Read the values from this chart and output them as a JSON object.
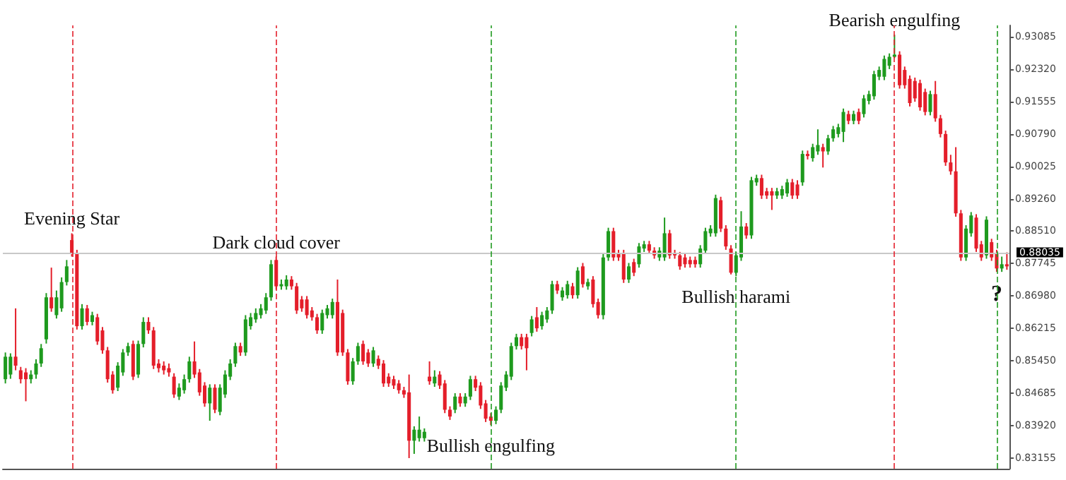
{
  "chart_data": {
    "type": "candlestick",
    "categories": [
      null,
      null,
      null,
      null,
      null,
      null,
      null,
      null,
      null,
      null,
      null,
      null,
      null,
      null,
      null,
      null,
      null,
      null,
      null,
      null,
      null,
      null,
      null,
      null,
      null,
      null,
      null,
      null,
      null,
      null,
      null,
      null,
      null,
      null,
      null,
      null,
      null,
      null,
      null,
      null,
      null,
      null,
      null,
      null,
      null,
      null,
      null,
      null,
      null,
      null,
      null,
      null,
      null,
      null,
      null,
      null,
      null,
      null,
      null,
      null,
      null,
      null,
      null,
      null,
      null,
      null,
      null,
      null,
      null,
      null,
      null,
      null,
      null,
      null,
      null,
      null,
      null,
      null,
      null,
      null,
      null,
      null,
      null,
      null,
      null,
      null,
      null,
      null,
      null,
      null,
      null,
      null,
      null,
      null,
      null,
      null,
      null,
      null,
      null,
      null,
      null,
      null,
      null,
      null,
      null,
      null,
      null,
      null,
      null,
      null,
      null,
      null,
      null,
      null,
      null,
      null,
      null,
      null,
      null,
      null,
      null,
      null,
      null,
      null,
      null,
      null,
      null,
      null,
      null,
      null,
      null,
      null,
      null,
      null,
      null,
      null,
      null,
      null,
      null,
      null,
      null,
      null,
      null,
      null,
      null,
      null,
      null,
      null,
      null,
      null,
      null,
      null,
      null,
      null,
      null,
      null,
      null,
      null,
      null,
      null,
      null,
      null,
      null,
      null,
      null,
      null,
      null,
      null,
      null,
      null,
      null,
      null,
      null,
      null,
      null,
      null,
      null,
      null,
      null,
      null,
      null,
      null,
      null,
      null,
      null,
      null,
      null,
      null,
      null,
      null,
      null,
      null,
      null,
      null,
      null,
      null,
      null
    ],
    "colors": [
      "#1e9a1e",
      "#1e9a1e",
      "#e41e2a",
      "#e41e2a",
      "#e41e2a",
      "#1e9a1e",
      "#1e9a1e",
      "#1e9a1e",
      "#1e9a1e",
      "#e41e2a",
      "#1e9a1e",
      "#1e9a1e",
      "#1e9a1e",
      "#e41e2a",
      "#e41e2a",
      "#1e9a1e",
      "#e41e2a",
      "#1e9a1e",
      "#e41e2a",
      "#e41e2a",
      "#e41e2a",
      "#e41e2a",
      "#1e9a1e",
      "#1e9a1e",
      "#1e9a1e",
      "#e41e2a",
      "#1e9a1e",
      "#1e9a1e",
      "#e41e2a",
      "#e41e2a",
      "#e41e2a",
      "#e41e2a",
      "#e41e2a",
      "#e41e2a",
      "#1e9a1e",
      "#1e9a1e",
      "#1e9a1e",
      "#e41e2a",
      "#e41e2a",
      "#e41e2a",
      "#1e9a1e",
      "#e41e2a",
      "#1e9a1e",
      "#1e9a1e",
      "#1e9a1e",
      "#1e9a1e",
      "#e41e2a",
      "#1e9a1e",
      "#1e9a1e",
      "#1e9a1e",
      "#1e9a1e",
      "#1e9a1e",
      "#1e9a1e",
      "#e41e2a",
      "#1e9a1e",
      "#1e9a1e",
      "#e41e2a",
      "#e41e2a",
      "#e41e2a",
      "#e41e2a",
      "#e41e2a",
      "#e41e2a",
      "#1e9a1e",
      "#1e9a1e",
      "#1e9a1e",
      "#e41e2a",
      "#e41e2a",
      "#e41e2a",
      "#1e9a1e",
      "#1e9a1e",
      "#e41e2a",
      "#e41e2a",
      "#1e9a1e",
      "#e41e2a",
      "#e41e2a",
      "#e41e2a",
      "#e41e2a",
      "#e41e2a",
      "#e41e2a",
      "#e41e2a",
      "#1e9a1e",
      "#1e9a1e",
      "#1e9a1e",
      "#e41e2a",
      "#1e9a1e",
      "#e41e2a",
      "#e41e2a",
      "#e41e2a",
      "#1e9a1e",
      "#e41e2a",
      "#1e9a1e",
      "#1e9a1e",
      "#e41e2a",
      "#e41e2a",
      "#e41e2a",
      "#e41e2a",
      "#1e9a1e",
      "#1e9a1e",
      "#1e9a1e",
      "#1e9a1e",
      "#1e9a1e",
      "#e41e2a",
      "#e41e2a",
      "#1e9a1e",
      "#e41e2a",
      "#1e9a1e",
      "#1e9a1e",
      "#1e9a1e",
      "#e41e2a",
      "#1e9a1e",
      "#1e9a1e",
      "#e41e2a",
      "#1e9a1e",
      "#e41e2a",
      "#1e9a1e",
      "#e41e2a",
      "#e41e2a",
      "#1e9a1e",
      "#1e9a1e",
      "#e41e2a",
      "#e41e2a",
      "#e41e2a",
      "#1e9a1e",
      "#e41e2a",
      "#1e9a1e",
      "#1e9a1e",
      "#e41e2a",
      "#e41e2a",
      "#1e9a1e",
      "#1e9a1e",
      "#e41e2a",
      "#e41e2a",
      "#e41e2a",
      "#e41e2a",
      "#e41e2a",
      "#e41e2a",
      "#1e9a1e",
      "#1e9a1e",
      "#1e9a1e",
      "#1e9a1e",
      "#e41e2a",
      "#e41e2a",
      "#e41e2a",
      "#1e9a1e",
      "#1e9a1e",
      "#e41e2a",
      "#1e9a1e",
      "#1e9a1e",
      "#e41e2a",
      "#e41e2a",
      "#e41e2a",
      "#1e9a1e",
      "#1e9a1e",
      "#1e9a1e",
      "#e41e2a",
      "#e41e2a",
      "#1e9a1e",
      "#e41e2a",
      "#1e9a1e",
      "#1e9a1e",
      "#e41e2a",
      "#1e9a1e",
      "#1e9a1e",
      "#1e9a1e",
      "#1e9a1e",
      "#e41e2a",
      "#1e9a1e",
      "#e41e2a",
      "#1e9a1e",
      "#1e9a1e",
      "#1e9a1e",
      "#1e9a1e",
      "#1e9a1e",
      "#1e9a1e",
      "#1e9a1e",
      "#e41e2a",
      "#e41e2a",
      "#e41e2a",
      "#e41e2a",
      "#e41e2a",
      "#e41e2a",
      "#1e9a1e",
      "#e41e2a",
      "#e41e2a",
      "#e41e2a",
      "#e41e2a",
      "#e41e2a",
      "#e41e2a",
      "#1e9a1e",
      "#1e9a1e",
      "#e41e2a",
      "#e41e2a",
      "#1e9a1e",
      "#e41e2a",
      "#e41e2a",
      "#1e9a1e",
      "#e41e2a"
    ],
    "ohlc": [
      [
        0.8501,
        0.8564,
        0.8491,
        0.8554
      ],
      [
        0.8512,
        0.8562,
        0.8502,
        0.8554
      ],
      [
        0.8554,
        0.8668,
        0.8522,
        0.8533
      ],
      [
        0.8522,
        0.853,
        0.8491,
        0.8501
      ],
      [
        0.8517,
        0.8527,
        0.8449,
        0.8501
      ],
      [
        0.8501,
        0.8522,
        0.8491,
        0.8512
      ],
      [
        0.8512,
        0.8548,
        0.8502,
        0.8538
      ],
      [
        0.8538,
        0.8584,
        0.853,
        0.8574
      ],
      [
        0.8595,
        0.8704,
        0.8585,
        0.8694
      ],
      [
        0.8694,
        0.8764,
        0.866,
        0.8668
      ],
      [
        0.8652,
        0.871,
        0.8644,
        0.8694
      ],
      [
        0.8668,
        0.8741,
        0.866,
        0.873
      ],
      [
        0.873,
        0.8782,
        0.8722,
        0.8767
      ],
      [
        0.8829,
        0.8845,
        0.879,
        0.8798
      ],
      [
        0.8798,
        0.8806,
        0.8618,
        0.8626
      ],
      [
        0.8626,
        0.8678,
        0.8618,
        0.8668
      ],
      [
        0.8668,
        0.8676,
        0.8628,
        0.8636
      ],
      [
        0.8636,
        0.866,
        0.8628,
        0.8652
      ],
      [
        0.8647,
        0.8655,
        0.8582,
        0.859
      ],
      [
        0.8616,
        0.8624,
        0.8561,
        0.8569
      ],
      [
        0.8569,
        0.8577,
        0.8493,
        0.8501
      ],
      [
        0.8512,
        0.852,
        0.8467,
        0.8475
      ],
      [
        0.8481,
        0.8541,
        0.8473,
        0.8533
      ],
      [
        0.8517,
        0.8572,
        0.8509,
        0.8564
      ],
      [
        0.8564,
        0.8587,
        0.8556,
        0.8579
      ],
      [
        0.8584,
        0.8592,
        0.8499,
        0.8507
      ],
      [
        0.8512,
        0.8592,
        0.8504,
        0.8584
      ],
      [
        0.8584,
        0.8647,
        0.8576,
        0.8636
      ],
      [
        0.8636,
        0.8647,
        0.8608,
        0.8616
      ],
      [
        0.8616,
        0.8624,
        0.8525,
        0.8533
      ],
      [
        0.8538,
        0.8548,
        0.8517,
        0.8527
      ],
      [
        0.8533,
        0.8543,
        0.8512,
        0.8522
      ],
      [
        0.8527,
        0.8538,
        0.8507,
        0.8517
      ],
      [
        0.8507,
        0.8515,
        0.8457,
        0.8465
      ],
      [
        0.846,
        0.8491,
        0.8452,
        0.8481
      ],
      [
        0.8475,
        0.8512,
        0.8467,
        0.8501
      ],
      [
        0.8501,
        0.8554,
        0.8493,
        0.8543
      ],
      [
        0.8543,
        0.859,
        0.8504,
        0.8512
      ],
      [
        0.8517,
        0.8525,
        0.8462,
        0.847
      ],
      [
        0.8486,
        0.8494,
        0.8436,
        0.8444
      ],
      [
        0.8444,
        0.8489,
        0.8403,
        0.8481
      ],
      [
        0.8481,
        0.8489,
        0.8421,
        0.8429
      ],
      [
        0.8424,
        0.8489,
        0.8416,
        0.8481
      ],
      [
        0.8465,
        0.8522,
        0.8457,
        0.8512
      ],
      [
        0.8507,
        0.8548,
        0.8499,
        0.8538
      ],
      [
        0.8538,
        0.8587,
        0.853,
        0.8579
      ],
      [
        0.8579,
        0.8587,
        0.8556,
        0.8564
      ],
      [
        0.8564,
        0.8652,
        0.8556,
        0.8642
      ],
      [
        0.8626,
        0.8657,
        0.8618,
        0.8647
      ],
      [
        0.8642,
        0.8668,
        0.8634,
        0.8657
      ],
      [
        0.8652,
        0.8678,
        0.8644,
        0.8668
      ],
      [
        0.8663,
        0.8704,
        0.8655,
        0.8694
      ],
      [
        0.8694,
        0.8782,
        0.8686,
        0.8772
      ],
      [
        0.8782,
        0.879,
        0.8712,
        0.872
      ],
      [
        0.872,
        0.8736,
        0.8712,
        0.8725
      ],
      [
        0.872,
        0.8746,
        0.8712,
        0.8736
      ],
      [
        0.8736,
        0.8744,
        0.8712,
        0.872
      ],
      [
        0.872,
        0.8728,
        0.8655,
        0.8663
      ],
      [
        0.8689,
        0.8697,
        0.866,
        0.8668
      ],
      [
        0.8689,
        0.8697,
        0.8644,
        0.8652
      ],
      [
        0.8663,
        0.8671,
        0.8639,
        0.8647
      ],
      [
        0.8647,
        0.8655,
        0.8608,
        0.8616
      ],
      [
        0.8616,
        0.8665,
        0.8608,
        0.8657
      ],
      [
        0.8652,
        0.8676,
        0.8644,
        0.8668
      ],
      [
        0.8652,
        0.8691,
        0.8644,
        0.8683
      ],
      [
        0.8683,
        0.8736,
        0.8556,
        0.8564
      ],
      [
        0.8657,
        0.8665,
        0.8556,
        0.8564
      ],
      [
        0.8564,
        0.8572,
        0.8488,
        0.8496
      ],
      [
        0.8496,
        0.8551,
        0.8488,
        0.8543
      ],
      [
        0.8543,
        0.8587,
        0.8535,
        0.8579
      ],
      [
        0.8584,
        0.8592,
        0.8535,
        0.8543
      ],
      [
        0.8564,
        0.8572,
        0.853,
        0.8538
      ],
      [
        0.8538,
        0.8577,
        0.853,
        0.8569
      ],
      [
        0.8549,
        0.8557,
        0.8525,
        0.8533
      ],
      [
        0.8538,
        0.8546,
        0.8483,
        0.8491
      ],
      [
        0.8507,
        0.8515,
        0.8483,
        0.8491
      ],
      [
        0.8501,
        0.8509,
        0.8478,
        0.8486
      ],
      [
        0.8491,
        0.8499,
        0.8467,
        0.8475
      ],
      [
        0.8475,
        0.8483,
        0.8457,
        0.8465
      ],
      [
        0.847,
        0.8512,
        0.8315,
        0.8356
      ],
      [
        0.8356,
        0.839,
        0.8325,
        0.8382
      ],
      [
        0.8362,
        0.8413,
        0.8354,
        0.8382
      ],
      [
        0.8362,
        0.8385,
        0.8354,
        0.8377
      ],
      [
        0.8507,
        0.8543,
        0.8488,
        0.8496
      ],
      [
        0.8491,
        0.8522,
        0.8483,
        0.8507
      ],
      [
        0.8512,
        0.852,
        0.8478,
        0.8486
      ],
      [
        0.8491,
        0.8499,
        0.8421,
        0.8429
      ],
      [
        0.8429,
        0.8437,
        0.8405,
        0.8413
      ],
      [
        0.8429,
        0.8468,
        0.8421,
        0.846
      ],
      [
        0.846,
        0.8468,
        0.8436,
        0.8444
      ],
      [
        0.8444,
        0.8468,
        0.8436,
        0.846
      ],
      [
        0.846,
        0.8509,
        0.8452,
        0.8501
      ],
      [
        0.8501,
        0.8509,
        0.8473,
        0.8481
      ],
      [
        0.8486,
        0.8494,
        0.8431,
        0.8439
      ],
      [
        0.8444,
        0.8452,
        0.84,
        0.8408
      ],
      [
        0.8413,
        0.8421,
        0.8393,
        0.8403
      ],
      [
        0.8403,
        0.8437,
        0.8395,
        0.8429
      ],
      [
        0.8429,
        0.8494,
        0.8421,
        0.8486
      ],
      [
        0.8481,
        0.852,
        0.8473,
        0.8512
      ],
      [
        0.8507,
        0.8587,
        0.8499,
        0.8579
      ],
      [
        0.8579,
        0.8608,
        0.8571,
        0.86
      ],
      [
        0.86,
        0.8608,
        0.8571,
        0.8579
      ],
      [
        0.86,
        0.8608,
        0.8522,
        0.8574
      ],
      [
        0.861,
        0.865,
        0.8602,
        0.8642
      ],
      [
        0.8647,
        0.8671,
        0.8613,
        0.8621
      ],
      [
        0.8626,
        0.866,
        0.8618,
        0.8652
      ],
      [
        0.8642,
        0.8671,
        0.8634,
        0.8663
      ],
      [
        0.8663,
        0.8733,
        0.8655,
        0.8725
      ],
      [
        0.8725,
        0.8733,
        0.8702,
        0.871
      ],
      [
        0.8694,
        0.8718,
        0.8686,
        0.871
      ],
      [
        0.8699,
        0.8733,
        0.8691,
        0.8725
      ],
      [
        0.872,
        0.8728,
        0.8691,
        0.8699
      ],
      [
        0.8699,
        0.8765,
        0.8691,
        0.8757
      ],
      [
        0.8767,
        0.8775,
        0.8717,
        0.8725
      ],
      [
        0.872,
        0.8738,
        0.8712,
        0.873
      ],
      [
        0.8736,
        0.8744,
        0.867,
        0.8678
      ],
      [
        0.8683,
        0.8691,
        0.8644,
        0.8652
      ],
      [
        0.8652,
        0.8798,
        0.8642,
        0.8788
      ],
      [
        0.8788,
        0.8858,
        0.878,
        0.885
      ],
      [
        0.885,
        0.8858,
        0.878,
        0.8788
      ],
      [
        0.8798,
        0.8806,
        0.878,
        0.8788
      ],
      [
        0.8798,
        0.8806,
        0.8728,
        0.8736
      ],
      [
        0.8736,
        0.8775,
        0.8728,
        0.8767
      ],
      [
        0.8777,
        0.8785,
        0.8744,
        0.8752
      ],
      [
        0.8772,
        0.8822,
        0.8764,
        0.8814
      ],
      [
        0.8809,
        0.8827,
        0.8801,
        0.8819
      ],
      [
        0.8819,
        0.8827,
        0.8796,
        0.8804
      ],
      [
        0.8804,
        0.8812,
        0.8785,
        0.8793
      ],
      [
        0.8788,
        0.8812,
        0.878,
        0.8804
      ],
      [
        0.8788,
        0.8882,
        0.878,
        0.8845
      ],
      [
        0.8845,
        0.8853,
        0.8785,
        0.8793
      ],
      [
        0.8798,
        0.8806,
        0.8785,
        0.8793
      ],
      [
        0.8793,
        0.8801,
        0.8759,
        0.8767
      ],
      [
        0.8788,
        0.8796,
        0.8764,
        0.8772
      ],
      [
        0.8782,
        0.879,
        0.8764,
        0.8772
      ],
      [
        0.8782,
        0.879,
        0.8764,
        0.8772
      ],
      [
        0.8772,
        0.8817,
        0.8764,
        0.8809
      ],
      [
        0.8804,
        0.8858,
        0.8796,
        0.885
      ],
      [
        0.8845,
        0.8864,
        0.8837,
        0.8856
      ],
      [
        0.8845,
        0.8936,
        0.8837,
        0.8928
      ],
      [
        0.8923,
        0.8931,
        0.8848,
        0.8856
      ],
      [
        0.8856,
        0.8864,
        0.8806,
        0.8814
      ],
      [
        0.8809,
        0.8817,
        0.8748,
        0.8752
      ],
      [
        0.8752,
        0.8801,
        0.8744,
        0.8793
      ],
      [
        0.8788,
        0.8897,
        0.878,
        0.8861
      ],
      [
        0.8861,
        0.8869,
        0.8832,
        0.884
      ],
      [
        0.884,
        0.8978,
        0.8832,
        0.897
      ],
      [
        0.8965,
        0.8983,
        0.8957,
        0.8975
      ],
      [
        0.8975,
        0.8983,
        0.8926,
        0.8934
      ],
      [
        0.8944,
        0.8952,
        0.8926,
        0.8934
      ],
      [
        0.8944,
        0.8952,
        0.89,
        0.8934
      ],
      [
        0.8934,
        0.8952,
        0.8926,
        0.8944
      ],
      [
        0.8934,
        0.8957,
        0.8926,
        0.8949
      ],
      [
        0.8939,
        0.8973,
        0.8931,
        0.8965
      ],
      [
        0.8965,
        0.8973,
        0.8926,
        0.8934
      ],
      [
        0.896,
        0.897,
        0.8926,
        0.8934
      ],
      [
        0.8965,
        0.904,
        0.8957,
        0.9032
      ],
      [
        0.9032,
        0.904,
        0.9019,
        0.9027
      ],
      [
        0.9022,
        0.9056,
        0.9014,
        0.9048
      ],
      [
        0.9038,
        0.909,
        0.903,
        0.9053
      ],
      [
        0.9048,
        0.9056,
        0.9,
        0.9038
      ],
      [
        0.9038,
        0.9077,
        0.903,
        0.9069
      ],
      [
        0.9069,
        0.9098,
        0.9061,
        0.909
      ],
      [
        0.9079,
        0.9103,
        0.9071,
        0.9095
      ],
      [
        0.9084,
        0.9139,
        0.906,
        0.9131
      ],
      [
        0.9126,
        0.9134,
        0.9102,
        0.911
      ],
      [
        0.911,
        0.9134,
        0.9102,
        0.9126
      ],
      [
        0.9131,
        0.9139,
        0.9102,
        0.911
      ],
      [
        0.9126,
        0.9171,
        0.9118,
        0.9163
      ],
      [
        0.9157,
        0.9181,
        0.9149,
        0.9173
      ],
      [
        0.9168,
        0.9228,
        0.916,
        0.922
      ],
      [
        0.9214,
        0.9238,
        0.9206,
        0.923
      ],
      [
        0.9214,
        0.9264,
        0.9206,
        0.9256
      ],
      [
        0.924,
        0.9269,
        0.9232,
        0.9261
      ],
      [
        0.9261,
        0.9313,
        0.9258,
        0.9266
      ],
      [
        0.9266,
        0.9274,
        0.9186,
        0.9194
      ],
      [
        0.923,
        0.9238,
        0.9186,
        0.9194
      ],
      [
        0.9209,
        0.9217,
        0.9144,
        0.9152
      ],
      [
        0.9204,
        0.9212,
        0.9155,
        0.9163
      ],
      [
        0.9199,
        0.9207,
        0.9134,
        0.9142
      ],
      [
        0.9178,
        0.9186,
        0.9123,
        0.9131
      ],
      [
        0.9131,
        0.9181,
        0.9123,
        0.9173
      ],
      [
        0.9173,
        0.9204,
        0.9108,
        0.9116
      ],
      [
        0.9116,
        0.9124,
        0.9071,
        0.9079
      ],
      [
        0.9079,
        0.9087,
        0.9004,
        0.9012
      ],
      [
        0.9012,
        0.903,
        0.8983,
        0.8991
      ],
      [
        0.8991,
        0.9048,
        0.8884,
        0.8892
      ],
      [
        0.8892,
        0.89,
        0.878,
        0.8788
      ],
      [
        0.8788,
        0.8864,
        0.878,
        0.8856
      ],
      [
        0.8845,
        0.8895,
        0.8837,
        0.8887
      ],
      [
        0.8882,
        0.889,
        0.8801,
        0.8809
      ],
      [
        0.8819,
        0.8827,
        0.878,
        0.8788
      ],
      [
        0.8793,
        0.8885,
        0.8785,
        0.8877
      ],
      [
        0.8824,
        0.8832,
        0.878,
        0.8788
      ],
      [
        0.8798,
        0.8806,
        0.8754,
        0.8762
      ],
      [
        0.8762,
        0.879,
        0.8754,
        0.8772
      ],
      [
        0.8772,
        0.88,
        0.8759,
        0.8767
      ]
    ],
    "ylim": [
      0.829,
      0.9335
    ],
    "yticks": [
      0.83155,
      {
        "value": 0.8392,
        "label": "0.83920"
      },
      0.84685,
      {
        "value": 0.8545,
        "label": "0.85450"
      },
      0.86215,
      {
        "value": 0.8698,
        "label": "0.86980"
      },
      0.87745,
      {
        "value": 0.8851,
        "label": "0.88510"
      },
      {
        "value": 0.8926,
        "label": "0.89260"
      },
      0.90025,
      {
        "value": 0.9079,
        "label": "0.90790"
      },
      0.91555,
      {
        "value": 0.9232,
        "label": "0.92320"
      },
      0.93085
    ],
    "tick_labels": "y",
    "grid": false,
    "annotations": [
      {
        "text": "Evening Star",
        "y": 0.8845
      },
      {
        "text": "Dark cloud cover",
        "y": 0.879
      },
      {
        "text": "Bullish engulfing",
        "y": 0.8393
      },
      {
        "text": "Bullish harami",
        "y": 0.8744
      },
      {
        "text": "Bearish engulfing",
        "y": 0.9313
      },
      {
        "text": "?",
        "y": 0.8754
      }
    ],
    "ref_lines": [
      {
        "axis": "y",
        "value": 0.88035,
        "label": "0.88035",
        "color": "#c8c8c8",
        "line_style": "solid"
      }
    ]
  }
}
